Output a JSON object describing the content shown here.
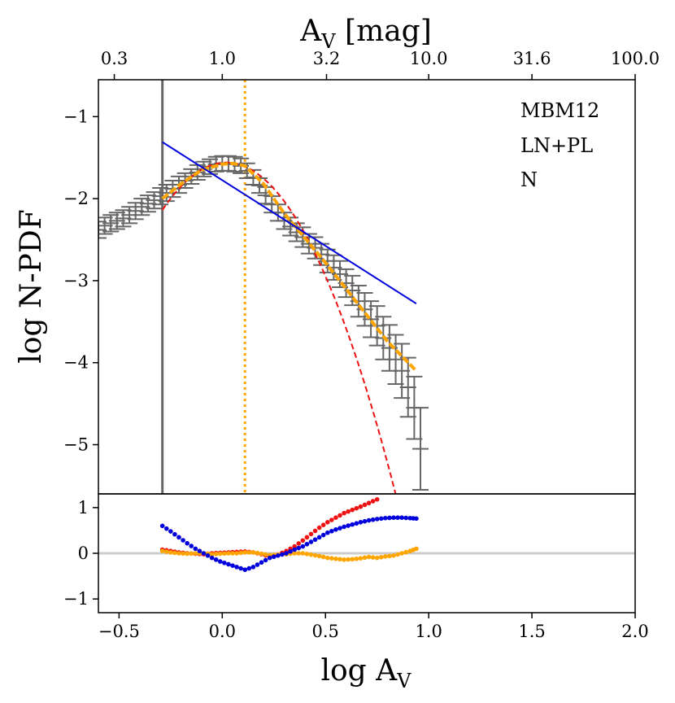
{
  "chart_data": {
    "type": "line",
    "top_axis": {
      "label": "A",
      "label_sub": "V",
      "label_suffix": " [mag]",
      "ticks": [
        {
          "log": -0.523,
          "label": "0.3"
        },
        {
          "log": 0.0,
          "label": "1.0"
        },
        {
          "log": 0.505,
          "label": "3.2"
        },
        {
          "log": 1.0,
          "label": "10.0"
        },
        {
          "log": 1.5,
          "label": "31.6"
        },
        {
          "log": 2.0,
          "label": "100.0"
        }
      ]
    },
    "x_axis": {
      "label": "log A",
      "label_sub": "V",
      "range": [
        -0.6,
        2.0
      ],
      "ticks": [
        {
          "value": -0.5,
          "label": "−0.5"
        },
        {
          "value": 0.0,
          "label": "0.0"
        },
        {
          "value": 0.5,
          "label": "0.5"
        },
        {
          "value": 1.0,
          "label": "1.0"
        },
        {
          "value": 1.5,
          "label": "1.5"
        },
        {
          "value": 2.0,
          "label": "2.0"
        }
      ]
    },
    "y_axis": {
      "label": "log N-PDF",
      "range": [
        -5.6,
        -0.55
      ],
      "ticks": [
        {
          "value": -1,
          "label": "−1"
        },
        {
          "value": -2,
          "label": "−2"
        },
        {
          "value": -3,
          "label": "−3"
        },
        {
          "value": -4,
          "label": "−4"
        },
        {
          "value": -5,
          "label": "−5"
        }
      ]
    },
    "residual_axis": {
      "range": [
        -1.3,
        1.3
      ],
      "ticks": [
        {
          "value": 1,
          "label": "1"
        },
        {
          "value": 0,
          "label": "0"
        },
        {
          "value": -1,
          "label": "−1"
        }
      ]
    },
    "annotations": [
      "MBM12",
      "LN+PL",
      "N"
    ],
    "completeness_limit_logAv": -0.29,
    "transition_logAv": 0.11,
    "colors": {
      "data": "#666666",
      "lognormal": "#ee1111",
      "powerlaw": "#0000dd",
      "composite": "#ffa500",
      "zero_line": "#cccccc"
    },
    "lognormal": {
      "peak_x": 0.02,
      "peak_y": -1.56,
      "sigma": 0.19
    },
    "powerlaw_line": {
      "x": [
        -0.29,
        0.94
      ],
      "y": [
        -1.31,
        -3.28
      ]
    },
    "composite": {
      "x": [
        -0.29,
        -0.2,
        -0.1,
        0.0,
        0.05,
        0.11,
        0.2,
        0.3,
        0.4,
        0.5,
        0.6,
        0.7,
        0.8,
        0.94
      ],
      "y": [
        -2.0,
        -1.82,
        -1.65,
        -1.58,
        -1.57,
        -1.6,
        -1.82,
        -2.18,
        -2.48,
        -2.78,
        -3.1,
        -3.42,
        -3.74,
        -4.1
      ]
    },
    "data_points": {
      "x": [
        -0.6,
        -0.57,
        -0.54,
        -0.51,
        -0.48,
        -0.45,
        -0.42,
        -0.39,
        -0.36,
        -0.33,
        -0.3,
        -0.27,
        -0.24,
        -0.21,
        -0.18,
        -0.15,
        -0.12,
        -0.09,
        -0.06,
        -0.03,
        0.0,
        0.03,
        0.06,
        0.09,
        0.12,
        0.15,
        0.18,
        0.21,
        0.24,
        0.27,
        0.3,
        0.33,
        0.36,
        0.39,
        0.42,
        0.45,
        0.48,
        0.51,
        0.54,
        0.57,
        0.6,
        0.63,
        0.66,
        0.69,
        0.72,
        0.75,
        0.78,
        0.81,
        0.84,
        0.87,
        0.9,
        0.93,
        0.96
      ],
      "y": [
        -2.38,
        -2.33,
        -2.3,
        -2.27,
        -2.24,
        -2.2,
        -2.15,
        -2.1,
        -2.06,
        -2.02,
        -1.97,
        -1.93,
        -1.88,
        -1.83,
        -1.78,
        -1.73,
        -1.68,
        -1.64,
        -1.61,
        -1.58,
        -1.57,
        -1.57,
        -1.58,
        -1.6,
        -1.66,
        -1.74,
        -1.84,
        -1.96,
        -2.07,
        -2.17,
        -2.27,
        -2.34,
        -2.41,
        -2.47,
        -2.55,
        -2.6,
        -2.68,
        -2.76,
        -2.84,
        -2.92,
        -3.03,
        -3.12,
        -3.25,
        -3.35,
        -3.47,
        -3.55,
        -3.7,
        -3.82,
        -3.96,
        -4.1,
        -4.3,
        -4.55,
        -5.05
      ],
      "err": [
        0.1,
        0.1,
        0.1,
        0.1,
        0.1,
        0.1,
        0.1,
        0.1,
        0.1,
        0.1,
        0.1,
        0.1,
        0.1,
        0.1,
        0.09,
        0.09,
        0.09,
        0.09,
        0.09,
        0.09,
        0.09,
        0.09,
        0.09,
        0.09,
        0.09,
        0.09,
        0.09,
        0.1,
        0.1,
        0.1,
        0.1,
        0.11,
        0.11,
        0.12,
        0.12,
        0.13,
        0.13,
        0.14,
        0.15,
        0.16,
        0.17,
        0.18,
        0.19,
        0.2,
        0.22,
        0.24,
        0.26,
        0.28,
        0.3,
        0.33,
        0.36,
        0.38,
        0.5
      ]
    },
    "residuals": {
      "x": [
        -0.29,
        -0.25,
        -0.21,
        -0.17,
        -0.13,
        -0.09,
        -0.05,
        -0.01,
        0.03,
        0.07,
        0.11,
        0.15,
        0.19,
        0.23,
        0.27,
        0.31,
        0.35,
        0.39,
        0.43,
        0.47,
        0.51,
        0.55,
        0.59,
        0.63,
        0.67,
        0.71,
        0.75,
        0.79,
        0.83,
        0.87,
        0.91,
        0.94
      ],
      "red": [
        0.08,
        0.05,
        0.02,
        0.0,
        -0.01,
        -0.02,
        0.0,
        0.01,
        0.02,
        0.03,
        0.04,
        0.02,
        -0.02,
        -0.07,
        -0.03,
        0.05,
        0.15,
        0.28,
        0.42,
        0.56,
        0.68,
        0.78,
        0.88,
        0.95,
        1.02,
        1.1,
        1.18,
        null,
        null,
        null,
        null,
        null
      ],
      "blue": [
        0.6,
        0.48,
        0.35,
        0.22,
        0.1,
        0.0,
        -0.1,
        -0.18,
        -0.24,
        -0.3,
        -0.36,
        -0.3,
        -0.2,
        -0.1,
        -0.05,
        0.0,
        0.08,
        0.15,
        0.25,
        0.35,
        0.45,
        0.52,
        0.58,
        0.63,
        0.68,
        0.72,
        0.75,
        0.77,
        0.78,
        0.78,
        0.77,
        0.76
      ],
      "orange": [
        0.05,
        0.02,
        0.0,
        -0.01,
        0.0,
        0.0,
        -0.02,
        -0.01,
        0.0,
        0.0,
        0.02,
        0.02,
        -0.01,
        -0.04,
        -0.03,
        -0.02,
        0.0,
        0.0,
        -0.03,
        -0.06,
        -0.1,
        -0.12,
        -0.14,
        -0.13,
        -0.11,
        -0.08,
        -0.1,
        -0.07,
        -0.05,
        0.0,
        0.05,
        0.1
      ]
    }
  }
}
